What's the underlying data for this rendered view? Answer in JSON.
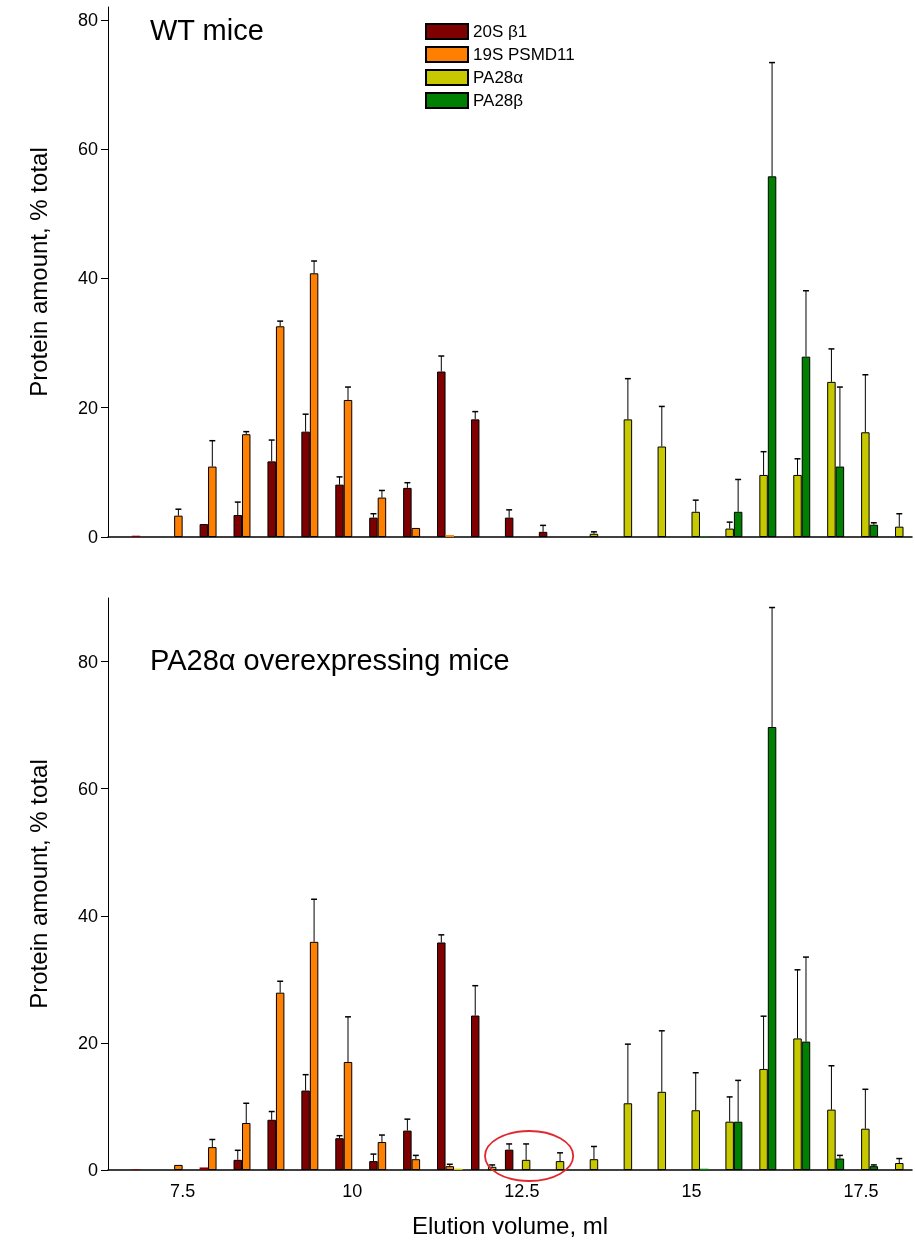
{
  "chart_data": [
    {
      "type": "bar",
      "title": "WT mice",
      "ylabel": "Protein amount, % total",
      "x": [
        7,
        7.5,
        8,
        8.5,
        9,
        9.5,
        10,
        10.5,
        11,
        11.5,
        12,
        12.5,
        13,
        13.5,
        14,
        14.5,
        15,
        15.5,
        16,
        16.5,
        17,
        17.5,
        18
      ],
      "xlim": [
        6.4,
        18.25
      ],
      "xticks": [
        7.5,
        10,
        12.5,
        15,
        17.5
      ],
      "ylim": [
        0,
        82
      ],
      "yticks": [
        0,
        20,
        40,
        60,
        80
      ],
      "tick_labels": "y",
      "legend": "top",
      "series": [
        {
          "name": "20S β1",
          "color": "#7f0000",
          "values": [
            0.2,
            null,
            2.0,
            3.4,
            11.7,
            16.3,
            8.1,
            3.0,
            7.6,
            25.6,
            18.2,
            3.0,
            0.8,
            null,
            null,
            null,
            null,
            null,
            null,
            null,
            null,
            null,
            null
          ],
          "errors": [
            null,
            null,
            null,
            [
              3.4,
              5.4
            ],
            [
              11.7,
              15.0
            ],
            [
              16.3,
              19.0
            ],
            [
              8.1,
              9.3
            ],
            [
              3.0,
              3.6
            ],
            [
              7.6,
              8.4
            ],
            [
              25.6,
              28.0
            ],
            [
              18.2,
              19.4
            ],
            [
              3.0,
              4.2
            ],
            [
              0.8,
              1.8
            ],
            null,
            null,
            null,
            null,
            null,
            null,
            null,
            null,
            null,
            null
          ]
        },
        {
          "name": "19S PSMD11",
          "color": "#ff8000",
          "values": [
            null,
            3.3,
            10.9,
            15.9,
            32.6,
            40.8,
            21.2,
            6.1,
            1.4,
            0.3,
            null,
            null,
            null,
            null,
            null,
            null,
            null,
            null,
            null,
            null,
            null,
            null,
            null
          ],
          "errors": [
            null,
            [
              3.3,
              4.3
            ],
            [
              10.9,
              14.9
            ],
            [
              15.9,
              16.3
            ],
            [
              32.6,
              33.4
            ],
            [
              40.8,
              42.7
            ],
            [
              21.2,
              23.2
            ],
            [
              6.1,
              7.2
            ],
            null,
            null,
            null,
            null,
            null,
            null,
            null,
            null,
            null,
            null,
            null,
            null,
            null,
            null,
            null
          ]
        },
        {
          "name": "PA28α",
          "color": "#c8c800",
          "values": [
            null,
            null,
            null,
            null,
            null,
            null,
            null,
            null,
            null,
            null,
            null,
            null,
            null,
            0.5,
            18.2,
            14.0,
            3.9,
            1.3,
            9.6,
            9.6,
            24.0,
            16.2,
            1.6
          ],
          "errors": [
            null,
            null,
            null,
            null,
            null,
            null,
            null,
            null,
            null,
            null,
            null,
            null,
            null,
            [
              0.5,
              0.8
            ],
            [
              18.2,
              24.5
            ],
            [
              14.0,
              20.2
            ],
            [
              3.9,
              5.7
            ],
            [
              1.3,
              2.3
            ],
            [
              9.6,
              13.2
            ],
            [
              9.6,
              12.1
            ],
            [
              24.0,
              29.1
            ],
            [
              16.2,
              25.1
            ],
            [
              1.6,
              3.6
            ]
          ]
        },
        {
          "name": "PA28β",
          "color": "#008000",
          "values": [
            null,
            null,
            null,
            null,
            null,
            null,
            null,
            null,
            null,
            null,
            null,
            null,
            null,
            null,
            null,
            null,
            0.1,
            3.9,
            55.8,
            27.9,
            10.9,
            1.9,
            null
          ],
          "errors": [
            null,
            null,
            null,
            null,
            null,
            null,
            null,
            null,
            null,
            null,
            null,
            null,
            null,
            null,
            null,
            null,
            null,
            [
              3.9,
              8.9
            ],
            [
              55.8,
              73.4
            ],
            [
              27.9,
              38.1
            ],
            [
              10.9,
              23.2
            ],
            [
              1.9,
              2.2
            ],
            null
          ]
        }
      ]
    },
    {
      "type": "bar",
      "title": "PA28α overexpressing mice",
      "ylabel": "Protein amount, % total",
      "xlabel": "Elution volume, ml",
      "x": [
        7,
        7.5,
        8,
        8.5,
        9,
        9.5,
        10,
        10.5,
        11,
        11.5,
        12,
        12.5,
        13,
        13.5,
        14,
        14.5,
        15,
        15.5,
        16,
        16.5,
        17,
        17.5,
        18
      ],
      "xlim": [
        6.4,
        18.25
      ],
      "xticks": [
        7.5,
        10,
        12.5,
        15,
        17.5
      ],
      "ylim": [
        0,
        90
      ],
      "yticks": [
        0,
        20,
        40,
        60,
        80
      ],
      "series": [
        {
          "color": "#7f0000",
          "values": [
            0.1,
            null,
            0.4,
            1.6,
            7.9,
            12.5,
            5.0,
            1.4,
            6.2,
            35.8,
            24.3,
            3.2,
            null,
            null,
            null,
            null,
            null,
            null,
            null,
            null,
            null,
            null,
            null
          ],
          "errors": [
            null,
            null,
            null,
            [
              1.6,
              3.1
            ],
            [
              7.9,
              9.2
            ],
            [
              12.5,
              15.0
            ],
            [
              5.0,
              5.4
            ],
            [
              1.4,
              2.5
            ],
            [
              6.2,
              8.0
            ],
            [
              35.8,
              37.0
            ],
            [
              24.3,
              29.0
            ],
            [
              3.2,
              4.1
            ],
            null,
            null,
            null,
            null,
            null,
            null,
            null,
            null,
            null,
            null,
            null
          ]
        },
        {
          "color": "#ff8000",
          "values": [
            null,
            0.8,
            3.6,
            7.4,
            27.9,
            35.9,
            17.0,
            4.4,
            1.7,
            0.6,
            null,
            null,
            null,
            null,
            null,
            null,
            null,
            null,
            null,
            null,
            null,
            null,
            null
          ],
          "errors": [
            null,
            null,
            [
              3.6,
              4.8
            ],
            [
              7.4,
              10.5
            ],
            [
              27.9,
              29.7
            ],
            [
              35.9,
              42.6
            ],
            [
              17.0,
              24.1
            ],
            [
              4.4,
              5.5
            ],
            [
              1.7,
              2.3
            ],
            [
              0.6,
              0.9
            ],
            null,
            null,
            null,
            null,
            null,
            null,
            null,
            null,
            null,
            null,
            null,
            null,
            null
          ]
        },
        {
          "color": "#c8c800",
          "values": [
            null,
            null,
            null,
            null,
            null,
            null,
            null,
            null,
            null,
            0.2,
            0.5,
            1.6,
            1.4,
            1.7,
            10.5,
            12.3,
            9.4,
            7.6,
            15.9,
            20.7,
            9.5,
            6.5,
            1.1
          ],
          "errors": [
            null,
            null,
            null,
            null,
            null,
            null,
            null,
            null,
            null,
            null,
            [
              0.5,
              0.8
            ],
            [
              1.6,
              4.1
            ],
            [
              1.4,
              2.7
            ],
            [
              1.7,
              3.7
            ],
            [
              10.5,
              19.8
            ],
            [
              12.3,
              21.9
            ],
            [
              9.4,
              15.3
            ],
            [
              7.6,
              11.5
            ],
            [
              15.9,
              24.2
            ],
            [
              20.7,
              31.5
            ],
            [
              9.5,
              16.4
            ],
            [
              6.5,
              12.7
            ],
            [
              1.1,
              1.8
            ]
          ]
        },
        {
          "color": "#008000",
          "values": [
            null,
            null,
            null,
            null,
            null,
            null,
            null,
            null,
            null,
            null,
            null,
            null,
            null,
            null,
            null,
            null,
            0.2,
            7.6,
            69.7,
            20.2,
            1.8,
            0.6,
            null
          ],
          "errors": [
            null,
            null,
            null,
            null,
            null,
            null,
            null,
            null,
            null,
            null,
            null,
            null,
            null,
            null,
            null,
            null,
            null,
            [
              7.6,
              14.1
            ],
            [
              69.7,
              88.5
            ],
            [
              20.2,
              33.5
            ],
            [
              1.8,
              2.3
            ],
            [
              0.6,
              0.8
            ],
            null
          ]
        }
      ]
    }
  ]
}
